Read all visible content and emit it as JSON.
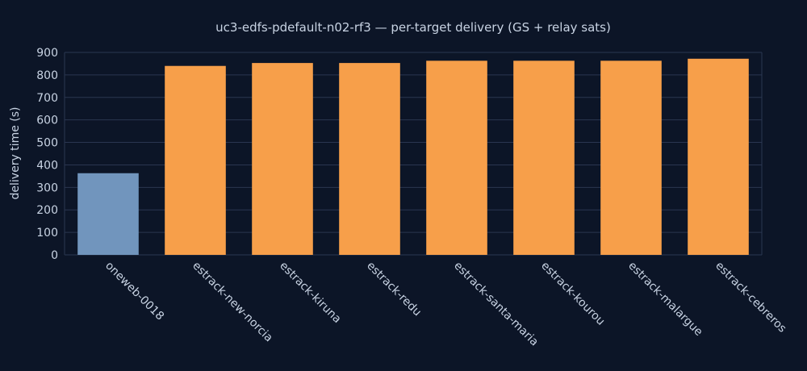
{
  "chart_data": {
    "type": "bar",
    "title": "uc3-edfs-pdefault-n02-rf3 — per-target delivery (GS + relay sats)",
    "xlabel": "",
    "ylabel": "delivery time (s)",
    "ylim": [
      0,
      900
    ],
    "yticks": [
      0,
      100,
      200,
      300,
      400,
      500,
      600,
      700,
      800,
      900
    ],
    "categories": [
      "oneweb-0018",
      "estrack-new-norcia",
      "estrack-kiruna",
      "estrack-redu",
      "estrack-santa-maria",
      "estrack-kourou",
      "estrack-malargue",
      "estrack-cebreros"
    ],
    "values": [
      363,
      840,
      853,
      853,
      863,
      863,
      863,
      872
    ],
    "bar_colors": [
      "#7195bd",
      "#f79f4a",
      "#f79f4a",
      "#f79f4a",
      "#f79f4a",
      "#f79f4a",
      "#f79f4a",
      "#f79f4a"
    ],
    "grid": true,
    "colors": {
      "background": "#0c1527",
      "plot_background": "#0c1527",
      "grid": "#2a3650",
      "text": "#c8d3e3"
    }
  }
}
